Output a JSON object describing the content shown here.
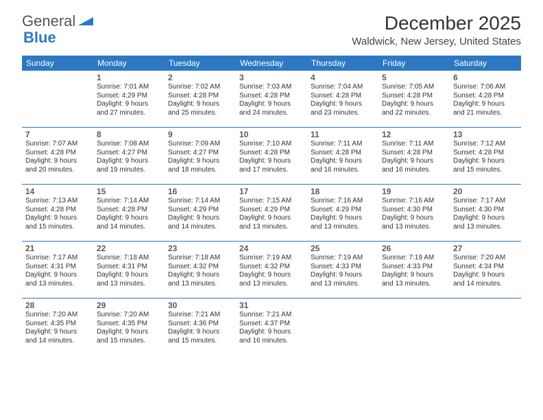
{
  "brand": {
    "part1": "General",
    "part2": "Blue"
  },
  "title": "December 2025",
  "location": "Waldwick, New Jersey, United States",
  "colors": {
    "accent": "#2d78c3",
    "text": "#333333",
    "bg": "#ffffff"
  },
  "day_headers": [
    "Sunday",
    "Monday",
    "Tuesday",
    "Wednesday",
    "Thursday",
    "Friday",
    "Saturday"
  ],
  "weeks": [
    [
      {
        "day": "",
        "sunrise": "",
        "sunset": "",
        "daylight": ""
      },
      {
        "day": "1",
        "sunrise": "Sunrise: 7:01 AM",
        "sunset": "Sunset: 4:29 PM",
        "daylight": "Daylight: 9 hours and 27 minutes."
      },
      {
        "day": "2",
        "sunrise": "Sunrise: 7:02 AM",
        "sunset": "Sunset: 4:28 PM",
        "daylight": "Daylight: 9 hours and 25 minutes."
      },
      {
        "day": "3",
        "sunrise": "Sunrise: 7:03 AM",
        "sunset": "Sunset: 4:28 PM",
        "daylight": "Daylight: 9 hours and 24 minutes."
      },
      {
        "day": "4",
        "sunrise": "Sunrise: 7:04 AM",
        "sunset": "Sunset: 4:28 PM",
        "daylight": "Daylight: 9 hours and 23 minutes."
      },
      {
        "day": "5",
        "sunrise": "Sunrise: 7:05 AM",
        "sunset": "Sunset: 4:28 PM",
        "daylight": "Daylight: 9 hours and 22 minutes."
      },
      {
        "day": "6",
        "sunrise": "Sunrise: 7:06 AM",
        "sunset": "Sunset: 4:28 PM",
        "daylight": "Daylight: 9 hours and 21 minutes."
      }
    ],
    [
      {
        "day": "7",
        "sunrise": "Sunrise: 7:07 AM",
        "sunset": "Sunset: 4:28 PM",
        "daylight": "Daylight: 9 hours and 20 minutes."
      },
      {
        "day": "8",
        "sunrise": "Sunrise: 7:08 AM",
        "sunset": "Sunset: 4:27 PM",
        "daylight": "Daylight: 9 hours and 19 minutes."
      },
      {
        "day": "9",
        "sunrise": "Sunrise: 7:09 AM",
        "sunset": "Sunset: 4:27 PM",
        "daylight": "Daylight: 9 hours and 18 minutes."
      },
      {
        "day": "10",
        "sunrise": "Sunrise: 7:10 AM",
        "sunset": "Sunset: 4:28 PM",
        "daylight": "Daylight: 9 hours and 17 minutes."
      },
      {
        "day": "11",
        "sunrise": "Sunrise: 7:11 AM",
        "sunset": "Sunset: 4:28 PM",
        "daylight": "Daylight: 9 hours and 16 minutes."
      },
      {
        "day": "12",
        "sunrise": "Sunrise: 7:11 AM",
        "sunset": "Sunset: 4:28 PM",
        "daylight": "Daylight: 9 hours and 16 minutes."
      },
      {
        "day": "13",
        "sunrise": "Sunrise: 7:12 AM",
        "sunset": "Sunset: 4:28 PM",
        "daylight": "Daylight: 9 hours and 15 minutes."
      }
    ],
    [
      {
        "day": "14",
        "sunrise": "Sunrise: 7:13 AM",
        "sunset": "Sunset: 4:28 PM",
        "daylight": "Daylight: 9 hours and 15 minutes."
      },
      {
        "day": "15",
        "sunrise": "Sunrise: 7:14 AM",
        "sunset": "Sunset: 4:28 PM",
        "daylight": "Daylight: 9 hours and 14 minutes."
      },
      {
        "day": "16",
        "sunrise": "Sunrise: 7:14 AM",
        "sunset": "Sunset: 4:29 PM",
        "daylight": "Daylight: 9 hours and 14 minutes."
      },
      {
        "day": "17",
        "sunrise": "Sunrise: 7:15 AM",
        "sunset": "Sunset: 4:29 PM",
        "daylight": "Daylight: 9 hours and 13 minutes."
      },
      {
        "day": "18",
        "sunrise": "Sunrise: 7:16 AM",
        "sunset": "Sunset: 4:29 PM",
        "daylight": "Daylight: 9 hours and 13 minutes."
      },
      {
        "day": "19",
        "sunrise": "Sunrise: 7:16 AM",
        "sunset": "Sunset: 4:30 PM",
        "daylight": "Daylight: 9 hours and 13 minutes."
      },
      {
        "day": "20",
        "sunrise": "Sunrise: 7:17 AM",
        "sunset": "Sunset: 4:30 PM",
        "daylight": "Daylight: 9 hours and 13 minutes."
      }
    ],
    [
      {
        "day": "21",
        "sunrise": "Sunrise: 7:17 AM",
        "sunset": "Sunset: 4:31 PM",
        "daylight": "Daylight: 9 hours and 13 minutes."
      },
      {
        "day": "22",
        "sunrise": "Sunrise: 7:18 AM",
        "sunset": "Sunset: 4:31 PM",
        "daylight": "Daylight: 9 hours and 13 minutes."
      },
      {
        "day": "23",
        "sunrise": "Sunrise: 7:18 AM",
        "sunset": "Sunset: 4:32 PM",
        "daylight": "Daylight: 9 hours and 13 minutes."
      },
      {
        "day": "24",
        "sunrise": "Sunrise: 7:19 AM",
        "sunset": "Sunset: 4:32 PM",
        "daylight": "Daylight: 9 hours and 13 minutes."
      },
      {
        "day": "25",
        "sunrise": "Sunrise: 7:19 AM",
        "sunset": "Sunset: 4:33 PM",
        "daylight": "Daylight: 9 hours and 13 minutes."
      },
      {
        "day": "26",
        "sunrise": "Sunrise: 7:19 AM",
        "sunset": "Sunset: 4:33 PM",
        "daylight": "Daylight: 9 hours and 13 minutes."
      },
      {
        "day": "27",
        "sunrise": "Sunrise: 7:20 AM",
        "sunset": "Sunset: 4:34 PM",
        "daylight": "Daylight: 9 hours and 14 minutes."
      }
    ],
    [
      {
        "day": "28",
        "sunrise": "Sunrise: 7:20 AM",
        "sunset": "Sunset: 4:35 PM",
        "daylight": "Daylight: 9 hours and 14 minutes."
      },
      {
        "day": "29",
        "sunrise": "Sunrise: 7:20 AM",
        "sunset": "Sunset: 4:35 PM",
        "daylight": "Daylight: 9 hours and 15 minutes."
      },
      {
        "day": "30",
        "sunrise": "Sunrise: 7:21 AM",
        "sunset": "Sunset: 4:36 PM",
        "daylight": "Daylight: 9 hours and 15 minutes."
      },
      {
        "day": "31",
        "sunrise": "Sunrise: 7:21 AM",
        "sunset": "Sunset: 4:37 PM",
        "daylight": "Daylight: 9 hours and 16 minutes."
      },
      {
        "day": "",
        "sunrise": "",
        "sunset": "",
        "daylight": ""
      },
      {
        "day": "",
        "sunrise": "",
        "sunset": "",
        "daylight": ""
      },
      {
        "day": "",
        "sunrise": "",
        "sunset": "",
        "daylight": ""
      }
    ]
  ]
}
